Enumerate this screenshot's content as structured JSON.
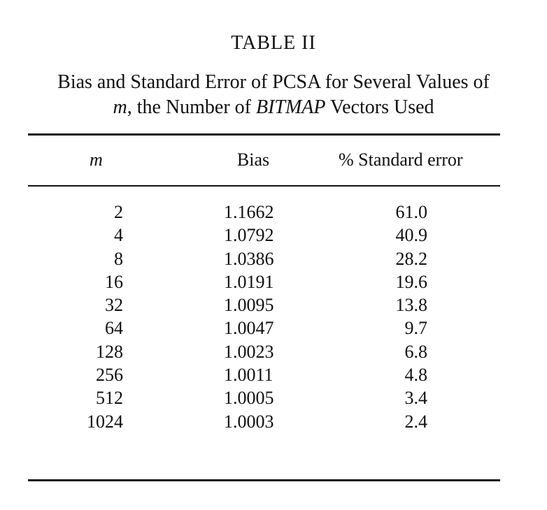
{
  "table": {
    "number": "TABLE II",
    "caption": {
      "line1": "Bias and Standard Error of PCSA for Several Values of",
      "line2_var": "m",
      "line2_mid": ", the Number of ",
      "line2_term": "BITMAP",
      "line2_end": " Vectors Used"
    },
    "headers": {
      "m": "m",
      "bias": "Bias",
      "error": "% Standard error"
    },
    "rows": [
      {
        "m": "2",
        "bias": "1.1662",
        "error": "61.0"
      },
      {
        "m": "4",
        "bias": "1.0792",
        "error": "40.9"
      },
      {
        "m": "8",
        "bias": "1.0386",
        "error": "28.2"
      },
      {
        "m": "16",
        "bias": "1.0191",
        "error": "19.6"
      },
      {
        "m": "32",
        "bias": "1.0095",
        "error": "13.8"
      },
      {
        "m": "64",
        "bias": "1.0047",
        "error": "9.7"
      },
      {
        "m": "128",
        "bias": "1.0023",
        "error": "6.8"
      },
      {
        "m": "256",
        "bias": "1.0011",
        "error": "4.8"
      },
      {
        "m": "512",
        "bias": "1.0005",
        "error": "3.4"
      },
      {
        "m": "1024",
        "bias": "1.0003",
        "error": "2.4"
      }
    ]
  }
}
